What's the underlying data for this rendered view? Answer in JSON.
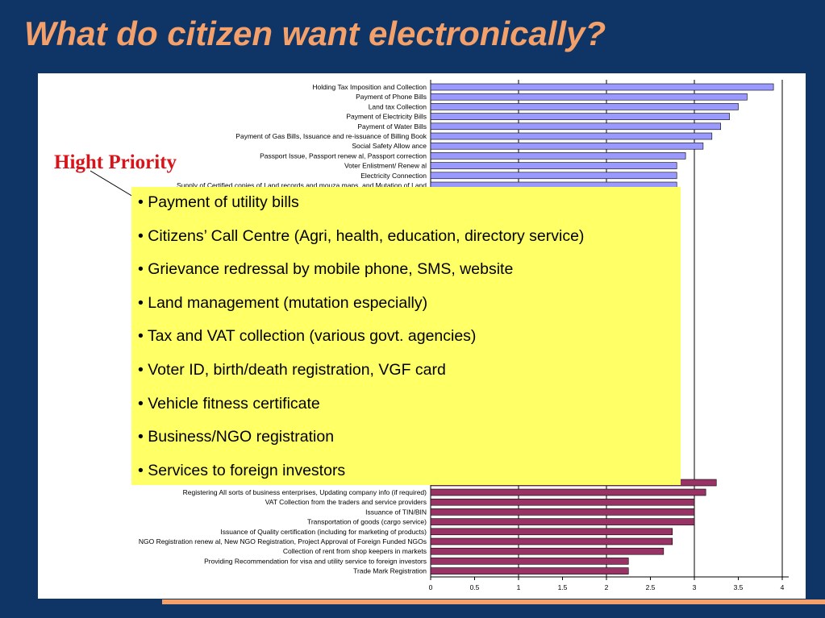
{
  "slide": {
    "title": "What do citizen want electronically?",
    "priority_label": "Hight Priority",
    "priority_items": [
      "• Payment of utility bills",
      "• Citizens’ Call Centre (Agri, health, education, directory service)",
      "• Grievance redressal by mobile phone, SMS, website",
      "• Land management (mutation especially)",
      "• Tax and VAT collection (various govt. agencies)",
      "• Voter ID, birth/death registration, VGF card",
      "• Vehicle fitness certificate",
      "• Business/NGO registration",
      "• Services to foreign investors"
    ],
    "colors": {
      "background": "#0f3566",
      "title": "#f4a06a",
      "priority_label": "#d8141a",
      "box": "#ffff66",
      "accent_bar": "#f4a06a"
    }
  },
  "chart_data": {
    "type": "bar",
    "orientation": "horizontal",
    "xlim": [
      0,
      4
    ],
    "xticks": [
      "0",
      "0.5",
      "1",
      "1.5",
      "2",
      "2.5",
      "3",
      "3.5",
      "4"
    ],
    "grid": "vertical gridlines at integer values",
    "top_group": {
      "color": "#9999ff",
      "categories": [
        "Holding Tax Imposition and Collection",
        "Payment of Phone Bills",
        "Land tax Collection",
        "Payment of Electricity Bills",
        "Payment of Water Bills",
        "Payment of Gas Bills, Issuance and re-issuance of Billing Book",
        "Social Safety Allow ance",
        "Passport Issue, Passport renew al, Passport correction",
        "Voter Enlistment/ Renew al",
        "Electricity Connection",
        "Supply of Certified copies of Land records and mouza maps, and Mutation of Land"
      ],
      "values": [
        3.9,
        3.6,
        3.5,
        3.4,
        3.3,
        3.2,
        3.1,
        2.9,
        2.8,
        2.8,
        2.8
      ]
    },
    "bottom_group": {
      "color": "#993366",
      "categories": [
        "Registering All sorts of business enterprises, Updating company info (if required)",
        "VAT Collection from the traders and service providers",
        "Issuance of TIN/BIN",
        "Transportation of goods (cargo service)",
        "Issuance of Quality certification (including for marketing of products)",
        "NGO Registration renew al, New NGO Registration, Project Approval of Foreign Funded NGOs",
        "Collection of rent from shop keepers in markets",
        "Providing Recommendation for visa and utility service to foreign investors",
        "Trade Mark Registration"
      ],
      "values": [
        3.13,
        3.0,
        3.0,
        3.0,
        2.75,
        2.75,
        2.65,
        2.25,
        2.25
      ],
      "partially_hidden_bar_value": 3.25
    }
  }
}
